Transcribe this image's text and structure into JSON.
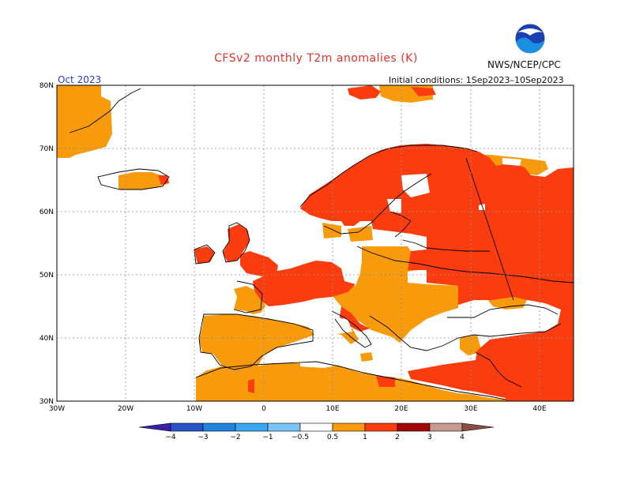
{
  "title": "CFSv2 monthly T2m anomalies (K)",
  "valid_period": "Oct 2023",
  "initial_conditions": "Initial conditions: 1Sep2023–10Sep2023",
  "agency": "NWS/NCEP/CPC",
  "logo_text": "NOAA",
  "lat_ticks": [
    "80N",
    "70N",
    "60N",
    "50N",
    "40N",
    "30N"
  ],
  "lon_ticks": [
    "30W",
    "20W",
    "10W",
    "0",
    "10E",
    "20E",
    "30E",
    "40E"
  ],
  "colorbar": {
    "labels": [
      "−4",
      "−3",
      "−2",
      "−1",
      "−0.5",
      "0.5",
      "1",
      "2",
      "3",
      "4"
    ],
    "colors": [
      "#3a1fa8",
      "#2a52c8",
      "#1e84e0",
      "#3aa6f4",
      "#7cc4f8",
      "#ffffff",
      "#f79a0c",
      "#fb3c0e",
      "#a00808",
      "#c89a8e",
      "#8a4e42"
    ]
  },
  "palette": {
    "positive_05_1": "#f79a0c",
    "positive_1_2": "#fb3c0e",
    "title_red": "#e8302a",
    "date_blue": "#2a3cc8"
  }
}
